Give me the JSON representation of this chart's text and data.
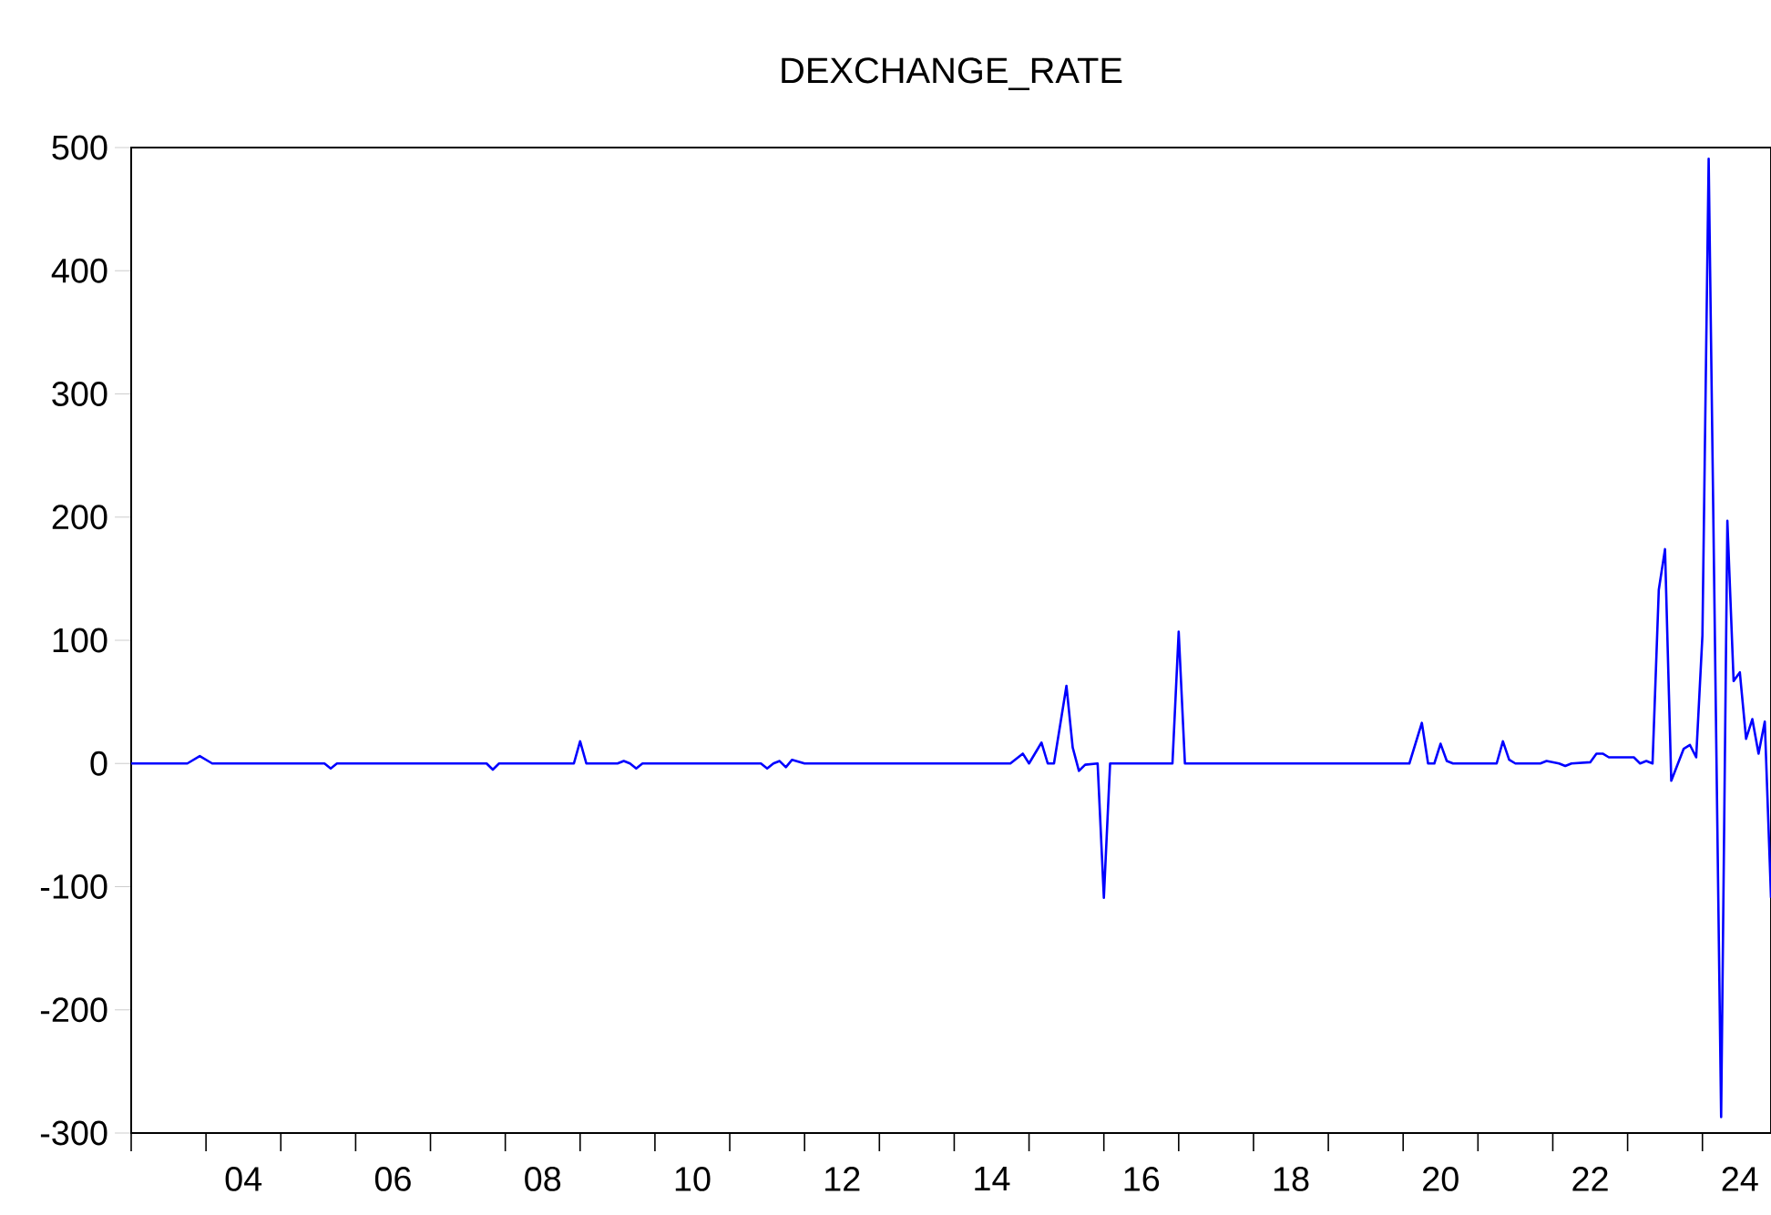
{
  "chart_data": {
    "type": "line",
    "title": "DEXCHANGE_RATE",
    "x": [
      "2003-01",
      "2003-10",
      "2003-12",
      "2004-02",
      "2005-08",
      "2005-09",
      "2005-10",
      "2007-10",
      "2007-11",
      "2007-12",
      "2008-12",
      "2009-01",
      "2009-02",
      "2009-07",
      "2009-08",
      "2009-09",
      "2009-10",
      "2009-11",
      "2011-06",
      "2011-07",
      "2011-08",
      "2011-09",
      "2011-10",
      "2011-11",
      "2012-01",
      "2014-10",
      "2014-12",
      "2015-01",
      "2015-03",
      "2015-04",
      "2015-05",
      "2015-07",
      "2015-08",
      "2015-09",
      "2015-10",
      "2015-12",
      "2016-01",
      "2016-02",
      "2016-12",
      "2017-01",
      "2017-02",
      "2020-02",
      "2020-04",
      "2020-05",
      "2020-06",
      "2020-07",
      "2020-08",
      "2020-09",
      "2021-04",
      "2021-05",
      "2021-06",
      "2021-07",
      "2021-11",
      "2021-12",
      "2022-02",
      "2022-03",
      "2022-04",
      "2022-07",
      "2022-08",
      "2022-09",
      "2022-10",
      "2023-02",
      "2023-03",
      "2023-04",
      "2023-05",
      "2023-06",
      "2023-07",
      "2023-08",
      "2023-10",
      "2023-11",
      "2023-12",
      "2024-01",
      "2024-02",
      "2024-04",
      "2024-05",
      "2024-06",
      "2024-07",
      "2024-08",
      "2024-09",
      "2024-10",
      "2024-11",
      "2024-12"
    ],
    "series": [
      {
        "color": "#0000ff",
        "values": [
          0,
          0,
          6,
          0,
          0,
          -4,
          0,
          0,
          -5,
          0,
          0,
          18,
          0,
          0,
          2,
          0,
          -4,
          0,
          0,
          -4,
          0,
          2,
          -3,
          3,
          0,
          0,
          8,
          0,
          17,
          0,
          0,
          63,
          13,
          -6,
          -1,
          0,
          -109,
          0,
          0,
          107,
          0,
          0,
          33,
          0,
          0,
          16,
          2,
          0,
          0,
          18,
          3,
          0,
          0,
          2,
          0,
          -2,
          0,
          1,
          8,
          8,
          5,
          5,
          0,
          2,
          0,
          141,
          174,
          -14,
          12,
          15,
          5,
          104,
          491,
          -287,
          197,
          67,
          74,
          20,
          36,
          8,
          34,
          -109
        ]
      }
    ],
    "xlim": [
      "2003-01",
      "2024-12"
    ],
    "xticks": [
      {
        "value": "2003",
        "label": null
      },
      {
        "value": "2004",
        "label": null
      },
      {
        "value": "2004-07",
        "label": "04"
      },
      {
        "value": "2005",
        "label": null
      },
      {
        "value": "2006",
        "label": null
      },
      {
        "value": "2006-07",
        "label": "06"
      },
      {
        "value": "2007",
        "label": null
      },
      {
        "value": "2008",
        "label": null
      },
      {
        "value": "2008-07",
        "label": "08"
      },
      {
        "value": "2009",
        "label": null
      },
      {
        "value": "2010",
        "label": null
      },
      {
        "value": "2010-07",
        "label": "10"
      },
      {
        "value": "2011",
        "label": null
      },
      {
        "value": "2012",
        "label": null
      },
      {
        "value": "2012-07",
        "label": "12"
      },
      {
        "value": "2013",
        "label": null
      },
      {
        "value": "2014",
        "label": null
      },
      {
        "value": "2014-07",
        "label": "14"
      },
      {
        "value": "2015",
        "label": null
      },
      {
        "value": "2016",
        "label": null
      },
      {
        "value": "2016-07",
        "label": "16"
      },
      {
        "value": "2017",
        "label": null
      },
      {
        "value": "2018",
        "label": null
      },
      {
        "value": "2018-07",
        "label": "18"
      },
      {
        "value": "2019",
        "label": null
      },
      {
        "value": "2020",
        "label": null
      },
      {
        "value": "2020-07",
        "label": "20"
      },
      {
        "value": "2021",
        "label": null
      },
      {
        "value": "2022",
        "label": null
      },
      {
        "value": "2022-07",
        "label": "22"
      },
      {
        "value": "2023",
        "label": null
      },
      {
        "value": "2024",
        "label": null
      },
      {
        "value": "2024-07",
        "label": "24"
      }
    ],
    "ylim": [
      -300,
      500
    ],
    "yticks": [
      -300,
      -200,
      -100,
      0,
      100,
      200,
      300,
      400,
      500
    ],
    "grid": false,
    "marker": "none",
    "line_style": "solid"
  }
}
